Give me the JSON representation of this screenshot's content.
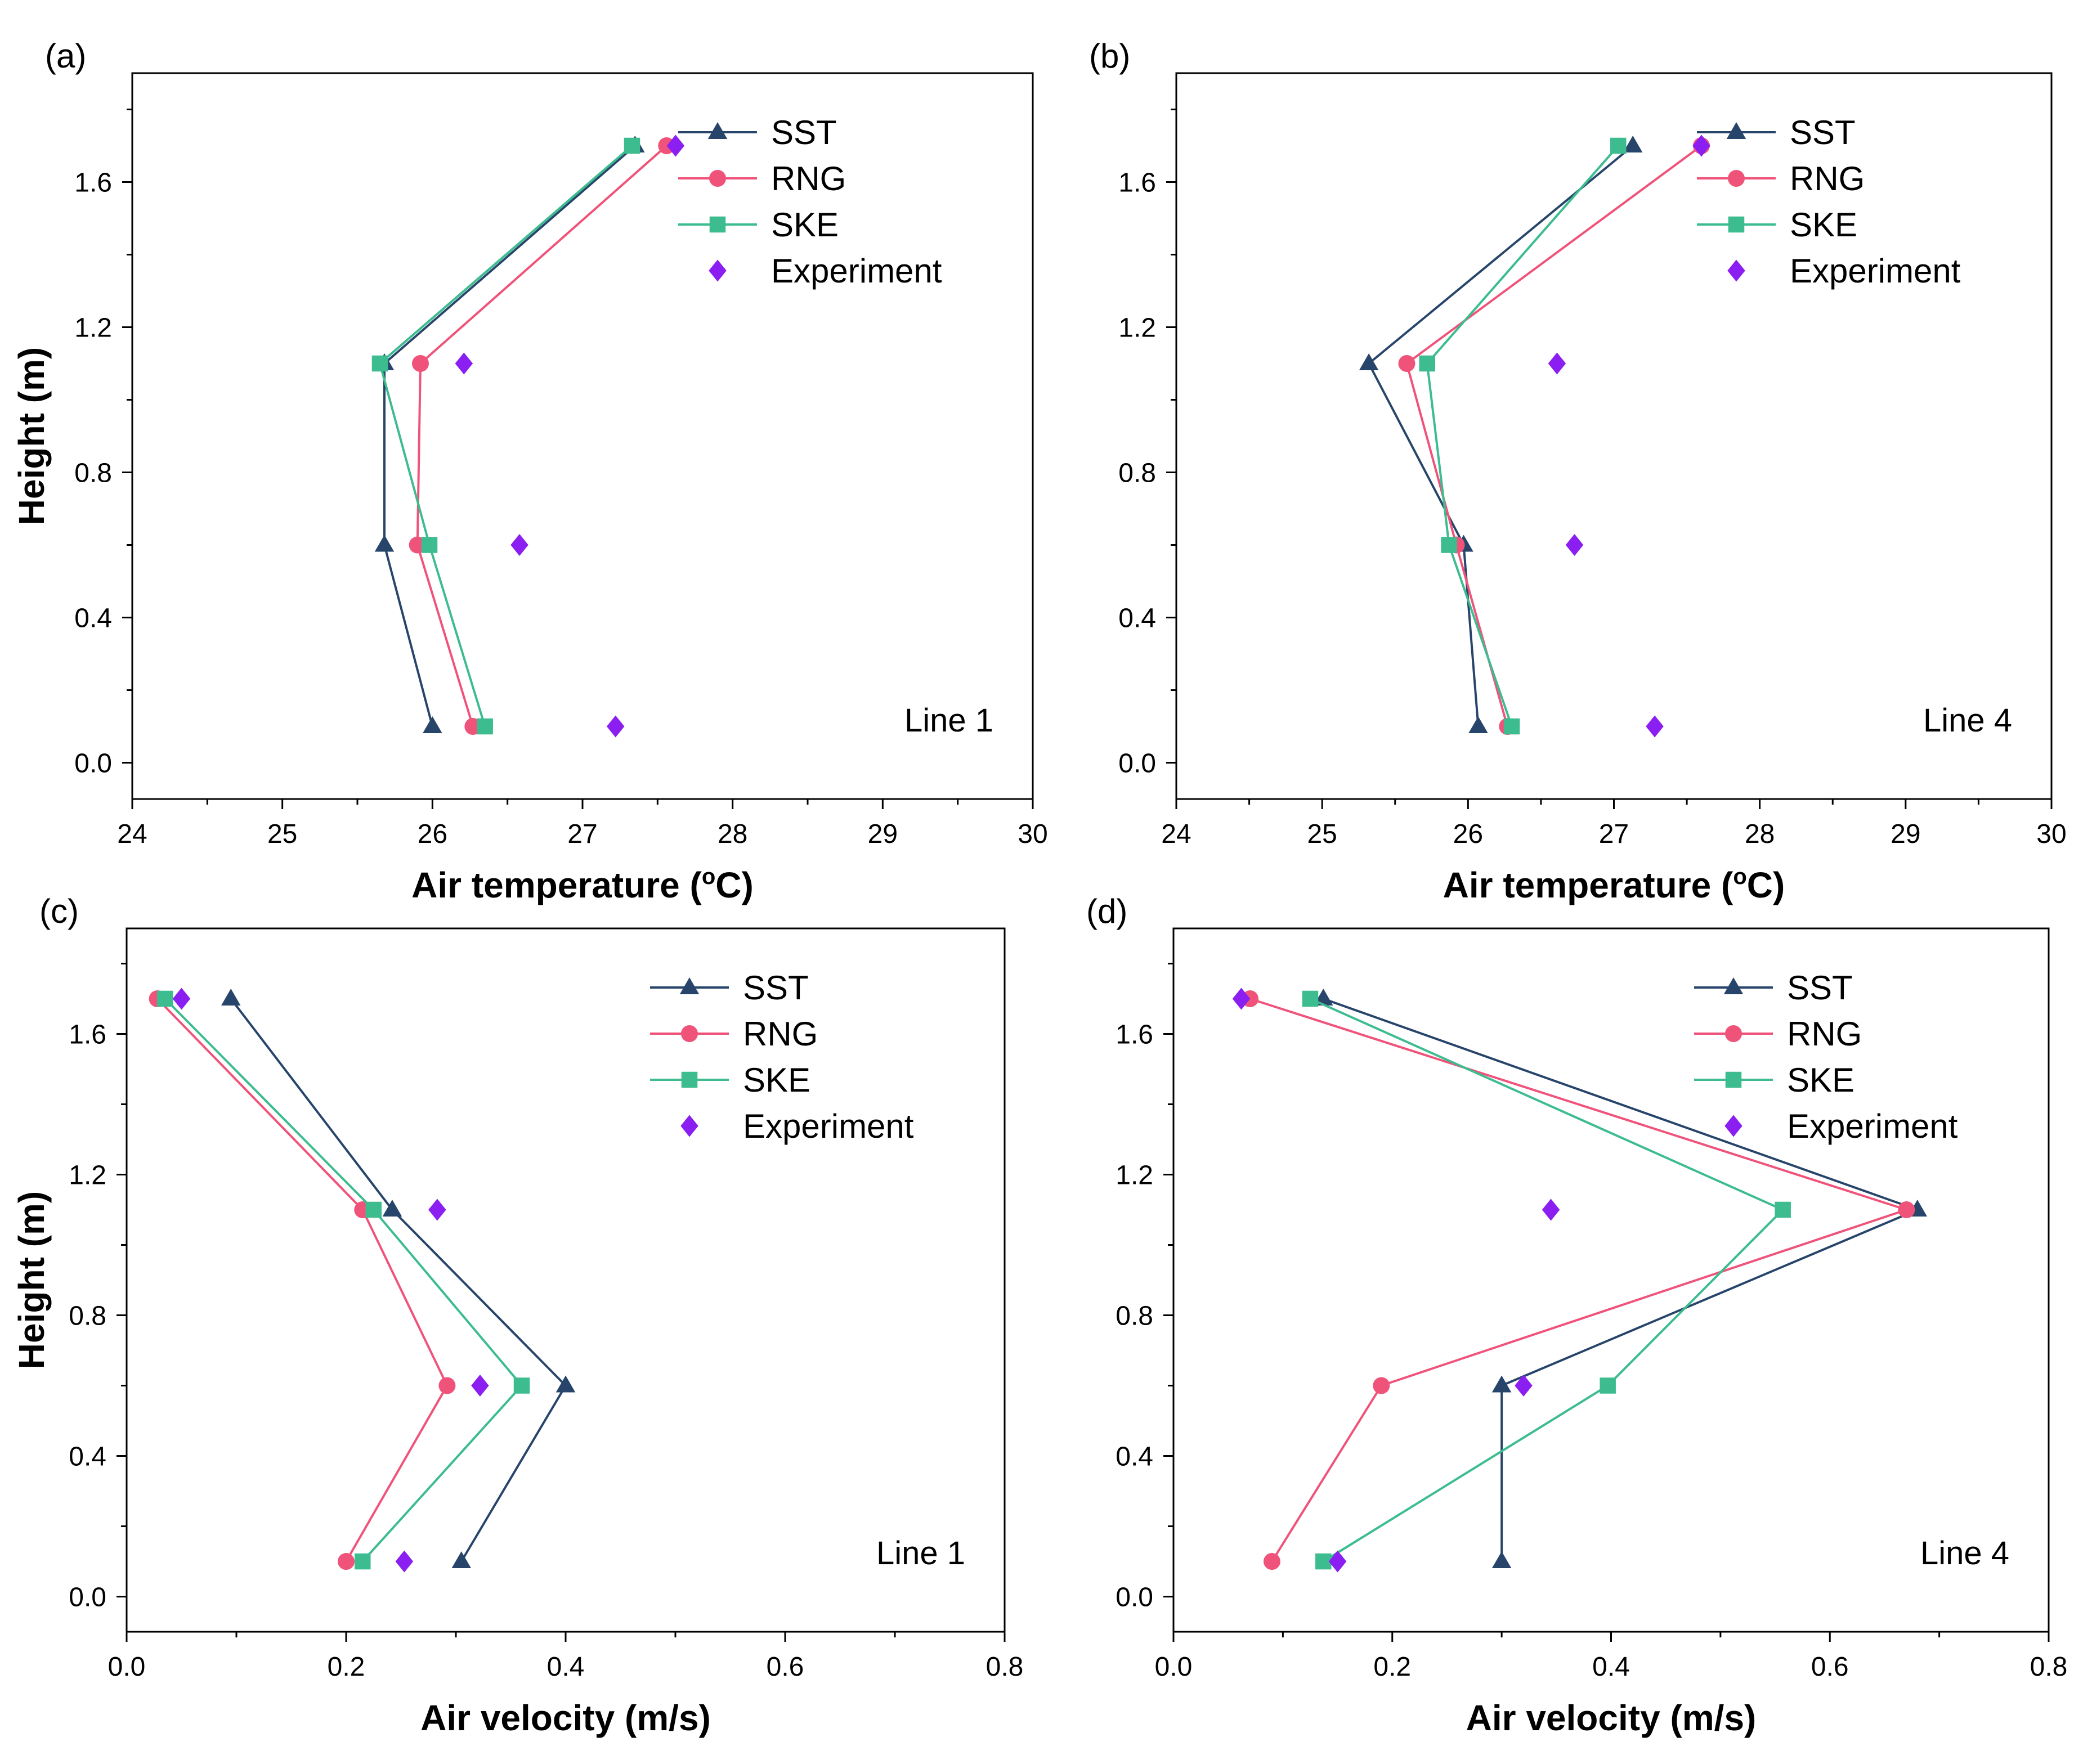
{
  "figure": {
    "series_style": {
      "SST": {
        "color": "#27456b",
        "marker": "triangle"
      },
      "RNG": {
        "color": "#f0537a",
        "marker": "circle"
      },
      "SKE": {
        "color": "#3cbc8f",
        "marker": "square"
      },
      "Experiment": {
        "color": "#8b1ef0",
        "marker": "diamond"
      }
    }
  },
  "chart_data": [
    {
      "type": "line",
      "panel_label": "(a)",
      "annotation": "Line 1",
      "xlabel": "Air temperature (oC)",
      "ylabel": "Height (m)",
      "xlim": [
        24,
        30
      ],
      "ylim": [
        -0.1,
        1.9
      ],
      "xticks": [
        "24",
        "25",
        "26",
        "27",
        "28",
        "29",
        "30"
      ],
      "yticks": [
        "0.0",
        "0.4",
        "0.8",
        "1.2",
        "1.6"
      ],
      "legend": [
        "SST",
        "RNG",
        "SKE",
        "Experiment"
      ],
      "series": [
        {
          "name": "SST",
          "points": [
            [
              26.0,
              0.1
            ],
            [
              25.68,
              0.6
            ],
            [
              25.68,
              1.1
            ],
            [
              27.35,
              1.7
            ]
          ]
        },
        {
          "name": "RNG",
          "points": [
            [
              26.27,
              0.1
            ],
            [
              25.9,
              0.6
            ],
            [
              25.92,
              1.1
            ],
            [
              27.56,
              1.7
            ]
          ]
        },
        {
          "name": "SKE",
          "points": [
            [
              26.35,
              0.1
            ],
            [
              25.98,
              0.6
            ],
            [
              25.65,
              1.1
            ],
            [
              27.33,
              1.7
            ]
          ]
        },
        {
          "name": "Experiment",
          "markers_only": true,
          "points": [
            [
              27.22,
              0.1
            ],
            [
              26.58,
              0.6
            ],
            [
              26.21,
              1.1
            ],
            [
              27.62,
              1.7
            ]
          ]
        }
      ]
    },
    {
      "type": "line",
      "panel_label": "(b)",
      "annotation": "Line 4",
      "xlabel": "Air temperature (oC)",
      "ylabel": "",
      "xlim": [
        24,
        30
      ],
      "ylim": [
        -0.1,
        1.9
      ],
      "xticks": [
        "24",
        "25",
        "26",
        "27",
        "28",
        "29",
        "30"
      ],
      "yticks": [
        "0.0",
        "0.4",
        "0.8",
        "1.2",
        "1.6"
      ],
      "legend": [
        "SST",
        "RNG",
        "SKE",
        "Experiment"
      ],
      "series": [
        {
          "name": "SST",
          "points": [
            [
              26.07,
              0.1
            ],
            [
              25.97,
              0.6
            ],
            [
              25.32,
              1.1
            ],
            [
              27.13,
              1.7
            ]
          ]
        },
        {
          "name": "RNG",
          "points": [
            [
              26.27,
              0.1
            ],
            [
              25.92,
              0.6
            ],
            [
              25.58,
              1.1
            ],
            [
              27.6,
              1.7
            ]
          ]
        },
        {
          "name": "SKE",
          "points": [
            [
              26.3,
              0.1
            ],
            [
              25.87,
              0.6
            ],
            [
              25.72,
              1.1
            ],
            [
              27.03,
              1.7
            ]
          ]
        },
        {
          "name": "Experiment",
          "markers_only": true,
          "points": [
            [
              27.28,
              0.1
            ],
            [
              26.73,
              0.6
            ],
            [
              26.61,
              1.1
            ],
            [
              27.6,
              1.7
            ]
          ]
        }
      ]
    },
    {
      "type": "line",
      "panel_label": "(c)",
      "annotation": "Line 1",
      "xlabel": "Air velocity (m/s)",
      "ylabel": "Height (m)",
      "xlim": [
        0.0,
        0.8
      ],
      "ylim": [
        -0.1,
        1.9
      ],
      "xticks": [
        "0.0",
        "0.2",
        "0.4",
        "0.6",
        "0.8"
      ],
      "yticks": [
        "0.0",
        "0.4",
        "0.8",
        "1.2",
        "1.6"
      ],
      "legend": [
        "SST",
        "RNG",
        "SKE",
        "Experiment"
      ],
      "series": [
        {
          "name": "SST",
          "points": [
            [
              0.305,
              0.1
            ],
            [
              0.4,
              0.6
            ],
            [
              0.242,
              1.1
            ],
            [
              0.095,
              1.7
            ]
          ]
        },
        {
          "name": "RNG",
          "points": [
            [
              0.2,
              0.1
            ],
            [
              0.292,
              0.6
            ],
            [
              0.215,
              1.1
            ],
            [
              0.028,
              1.7
            ]
          ]
        },
        {
          "name": "SKE",
          "points": [
            [
              0.215,
              0.1
            ],
            [
              0.36,
              0.6
            ],
            [
              0.225,
              1.1
            ],
            [
              0.035,
              1.7
            ]
          ]
        },
        {
          "name": "Experiment",
          "markers_only": true,
          "points": [
            [
              0.253,
              0.1
            ],
            [
              0.322,
              0.6
            ],
            [
              0.283,
              1.1
            ],
            [
              0.05,
              1.7
            ]
          ]
        }
      ]
    },
    {
      "type": "line",
      "panel_label": "(d)",
      "annotation": "Line 4",
      "xlabel": "Air velocity (m/s)",
      "ylabel": "",
      "xlim": [
        0.0,
        0.8
      ],
      "ylim": [
        -0.1,
        1.9
      ],
      "xticks": [
        "0.0",
        "0.2",
        "0.4",
        "0.6",
        "0.8"
      ],
      "yticks": [
        "0.0",
        "0.4",
        "0.8",
        "1.2",
        "1.6"
      ],
      "legend": [
        "SST",
        "RNG",
        "SKE",
        "Experiment"
      ],
      "series": [
        {
          "name": "SST",
          "points": [
            [
              0.3,
              0.1
            ],
            [
              0.3,
              0.6
            ],
            [
              0.68,
              1.1
            ],
            [
              0.137,
              1.7
            ]
          ]
        },
        {
          "name": "RNG",
          "points": [
            [
              0.09,
              0.1
            ],
            [
              0.19,
              0.6
            ],
            [
              0.67,
              1.1
            ],
            [
              0.07,
              1.7
            ]
          ]
        },
        {
          "name": "SKE",
          "points": [
            [
              0.137,
              0.1
            ],
            [
              0.397,
              0.6
            ],
            [
              0.557,
              1.1
            ],
            [
              0.125,
              1.7
            ]
          ]
        },
        {
          "name": "Experiment",
          "markers_only": true,
          "points": [
            [
              0.15,
              0.1
            ],
            [
              0.32,
              0.6
            ],
            [
              0.345,
              1.1
            ],
            [
              0.062,
              1.7
            ]
          ]
        }
      ]
    }
  ]
}
